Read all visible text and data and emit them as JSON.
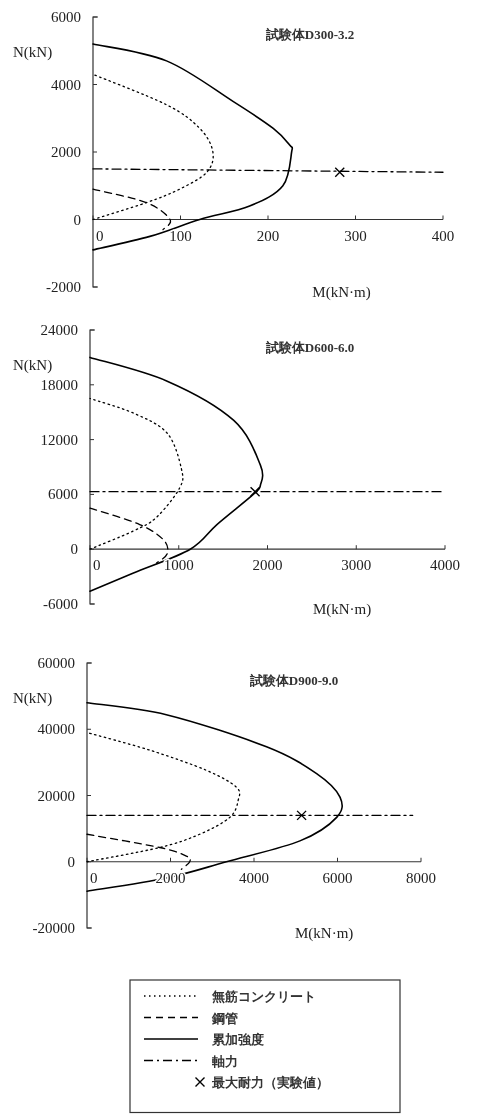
{
  "chart_data": [
    {
      "type": "line",
      "title": "試験体D300-3.2",
      "xlabel": "M(kN·m)",
      "ylabel": "N(kN)",
      "xlim": [
        0,
        400
      ],
      "xticks": [
        0,
        100,
        200,
        300,
        400
      ],
      "ylim": [
        -2000,
        6000
      ],
      "yticks": [
        -2000,
        0,
        2000,
        4000,
        6000
      ],
      "grid": false,
      "legend": false,
      "series": [
        {
          "type": "line",
          "line_style": "dotted",
          "color": "#000000",
          "x": [
            0,
            61,
            99,
            130,
            137,
            122,
            84,
            0
          ],
          "values": [
            0,
            500,
            900,
            1400,
            2000,
            2700,
            3400,
            4300
          ]
        },
        {
          "type": "line",
          "line_style": "dashed",
          "color": "#000000",
          "x": [
            0,
            61,
            88,
            80
          ],
          "values": [
            900,
            500,
            0,
            -300
          ]
        },
        {
          "type": "line",
          "line_style": "solid",
          "color": "#000000",
          "x": [
            0,
            65,
            122,
            179,
            217,
            227,
            225,
            206,
            160,
            84,
            0
          ],
          "values": [
            -900,
            -500,
            0,
            400,
            1000,
            2000,
            2200,
            2700,
            3500,
            4700,
            5200
          ]
        },
        {
          "type": "line",
          "line_style": "dashdot",
          "color": "#000000",
          "x": [
            0,
            400
          ],
          "values": [
            1500,
            1400
          ]
        },
        {
          "type": "scatter",
          "marker": "cross",
          "color": "#000000",
          "x": [
            282
          ],
          "values": [
            1400
          ]
        }
      ]
    },
    {
      "type": "line",
      "title": "試験体D600-6.0",
      "xlabel": "M(kN·m)",
      "ylabel": "N(kN)",
      "xlim": [
        0,
        4000
      ],
      "xticks": [
        0,
        1000,
        2000,
        3000,
        4000
      ],
      "ylim": [
        -6000,
        24000
      ],
      "yticks": [
        -6000,
        0,
        6000,
        12000,
        18000,
        24000
      ],
      "grid": false,
      "legend": false,
      "series": [
        {
          "type": "line",
          "line_style": "dotted",
          "color": "#000000",
          "x": [
            0,
            490,
            750,
            1010,
            1030,
            870,
            490,
            0
          ],
          "values": [
            0,
            2000,
            3500,
            6700,
            8800,
            12700,
            14900,
            16500
          ]
        },
        {
          "type": "line",
          "line_style": "dashed",
          "color": "#000000",
          "x": [
            0,
            560,
            830,
            870,
            750
          ],
          "values": [
            4500,
            2700,
            1000,
            -500,
            -1500
          ]
        },
        {
          "type": "line",
          "line_style": "solid",
          "color": "#000000",
          "x": [
            0,
            490,
            1130,
            1430,
            1840,
            1920,
            1920,
            1620,
            870,
            0
          ],
          "values": [
            -4600,
            -2600,
            0,
            2700,
            6000,
            7000,
            9200,
            14100,
            18400,
            21000
          ]
        },
        {
          "type": "line",
          "line_style": "dashdot",
          "color": "#000000",
          "x": [
            0,
            4000
          ],
          "values": [
            6300,
            6300
          ]
        },
        {
          "type": "scatter",
          "marker": "cross",
          "color": "#000000",
          "x": [
            1860
          ],
          "values": [
            6300
          ]
        }
      ]
    },
    {
      "type": "line",
      "title": "試験体D900-9.0",
      "xlabel": "M(kN·m)",
      "ylabel": "N(kN)",
      "xlim": [
        0,
        8000
      ],
      "xticks": [
        0,
        2000,
        4000,
        6000,
        8000
      ],
      "ylim": [
        -20000,
        60000
      ],
      "yticks": [
        -20000,
        0,
        20000,
        40000,
        60000
      ],
      "grid": false,
      "legend": "bottom",
      "series": [
        {
          "name": "無筋コンクリート",
          "type": "line",
          "line_style": "dotted",
          "color": "#000000",
          "x": [
            0,
            1740,
            2700,
            3420,
            3620,
            3580,
            2860,
            1500,
            0
          ],
          "values": [
            0,
            4300,
            8300,
            13400,
            18500,
            22500,
            27600,
            33700,
            39000
          ]
        },
        {
          "name": "鋼管",
          "type": "line",
          "line_style": "dashed",
          "color": "#000000",
          "x": [
            0,
            1740,
            2380,
            2460,
            2260
          ],
          "values": [
            8300,
            4300,
            1700,
            0,
            -2300
          ]
        },
        {
          "name": "累加強度",
          "type": "line",
          "line_style": "solid",
          "color": "#000000",
          "x": [
            0,
            1900,
            3340,
            5100,
            5980,
            6060,
            5500,
            4300,
            1900,
            0
          ],
          "values": [
            -8900,
            -4900,
            0,
            6300,
            13400,
            19500,
            26600,
            34700,
            44400,
            48000
          ]
        },
        {
          "name": "軸力",
          "type": "line",
          "line_style": "dashdot",
          "color": "#000000",
          "x": [
            0,
            7800
          ],
          "values": [
            14000,
            14000
          ]
        },
        {
          "name": "最大耐力（実験値）",
          "type": "scatter",
          "marker": "cross",
          "color": "#000000",
          "x": [
            5140
          ],
          "values": [
            14000
          ]
        }
      ]
    }
  ]
}
